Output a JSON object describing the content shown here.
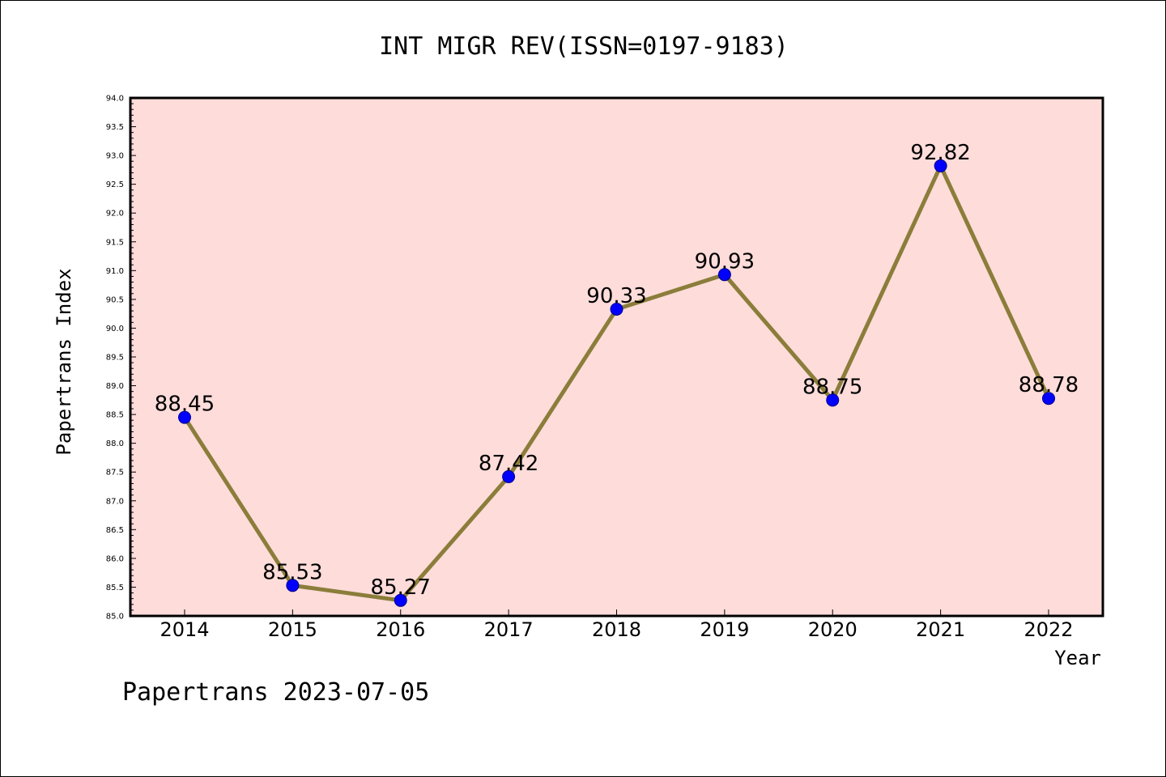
{
  "chart_data": {
    "type": "line",
    "title": "INT MIGR REV(ISSN=0197-9183)",
    "xlabel": "Year",
    "ylabel": "Papertrans Index",
    "footer": "Papertrans 2023-07-05",
    "categories": [
      "2014",
      "2015",
      "2016",
      "2017",
      "2018",
      "2019",
      "2020",
      "2021",
      "2022"
    ],
    "values": [
      88.45,
      85.53,
      85.27,
      87.42,
      90.33,
      90.93,
      88.75,
      92.82,
      88.78
    ],
    "data_labels": [
      "88.45",
      "85.53",
      "85.27",
      "87.42",
      "90.33",
      "90.93",
      "88.75",
      "92.82",
      "88.78"
    ],
    "ylim": [
      85.0,
      94.0
    ],
    "y_ticks": [
      "85.0",
      "85.5",
      "86.0",
      "86.5",
      "87.0",
      "87.5",
      "88.0",
      "88.5",
      "89.0",
      "89.5",
      "90.0",
      "90.5",
      "91.0",
      "91.5",
      "92.0",
      "92.5",
      "93.0",
      "93.5",
      "94.0"
    ],
    "grid": false,
    "legend": "none",
    "colors": {
      "plot_background": "#FDDCDA",
      "line": "#8B7D3A",
      "marker": "#0000FF",
      "axis": "#000000"
    }
  }
}
